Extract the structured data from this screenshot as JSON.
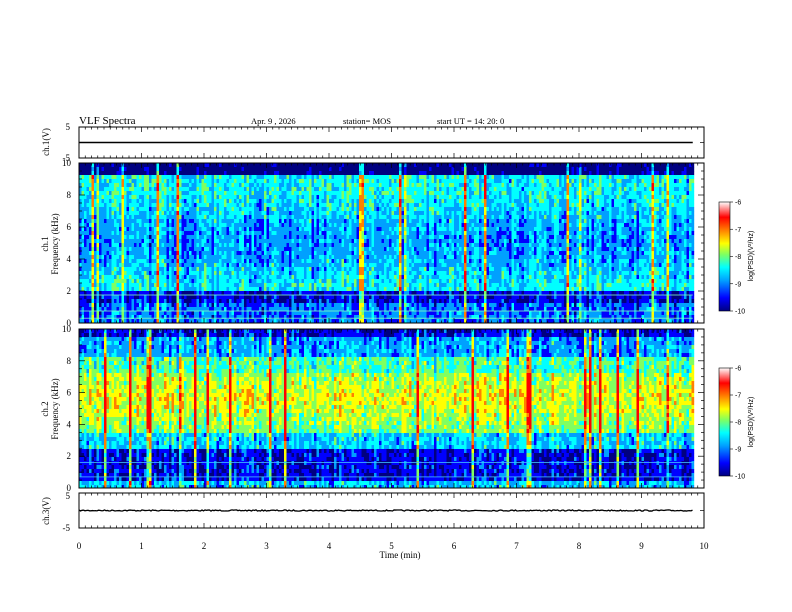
{
  "header": {
    "title": "VLF Spectra",
    "date": "Apr. 9 , 2026",
    "station": "station= MOS",
    "start": "start UT =  14: 20: 0"
  },
  "chart_data": [
    {
      "type": "line",
      "name": "ch1-waveform",
      "ylabel": "ch.1(V)",
      "ylim": [
        -5,
        5
      ],
      "yticks": [
        "5",
        "-5"
      ],
      "xlim": [
        0,
        10
      ],
      "x": [
        0,
        9.82
      ],
      "y": [
        0,
        0
      ],
      "grid": false
    },
    {
      "type": "heatmap",
      "name": "ch1-spectrogram",
      "ylabel": "ch.1\nFrequency (kHz)",
      "ylim": [
        0,
        10
      ],
      "yticks": [
        "0",
        "2",
        "4",
        "6",
        "8",
        "10"
      ],
      "xlim": [
        0,
        10
      ],
      "data_end": 9.82,
      "colorbar": {
        "label": "log(PSD)(V²/Hz)",
        "range": [
          -10,
          -6
        ],
        "ticks": [
          "-6",
          "-7",
          "-8",
          "-9",
          "-10"
        ]
      }
    },
    {
      "type": "heatmap",
      "name": "ch2-spectrogram",
      "ylabel": "ch.2\nFrequency (kHz)",
      "ylim": [
        0,
        10
      ],
      "yticks": [
        "0",
        "2",
        "4",
        "6",
        "8",
        "10"
      ],
      "xlim": [
        0,
        10
      ],
      "data_end": 9.82,
      "colorbar": {
        "label": "log(PSD)(V²/Hz)",
        "range": [
          -10,
          -6
        ],
        "ticks": [
          "-6",
          "-7",
          "-8",
          "-9",
          "-10"
        ]
      }
    },
    {
      "type": "line",
      "name": "ch3-waveform",
      "ylabel": "ch.3(V)",
      "ylim": [
        -5,
        5
      ],
      "yticks": [
        "5",
        "-5"
      ],
      "xlim": [
        0,
        10
      ],
      "x": [
        0,
        9.82
      ],
      "y": [
        0,
        0
      ],
      "grid": false
    }
  ],
  "xaxis": {
    "label": "Time (min)",
    "ticks": [
      "0",
      "1",
      "2",
      "3",
      "4",
      "5",
      "6",
      "7",
      "8",
      "9",
      "10"
    ]
  },
  "colormap": [
    "#000080",
    "#0000ff",
    "#00a0ff",
    "#00ffff",
    "#80ff60",
    "#ffff00",
    "#ff8000",
    "#ff0000",
    "#ffffff"
  ]
}
